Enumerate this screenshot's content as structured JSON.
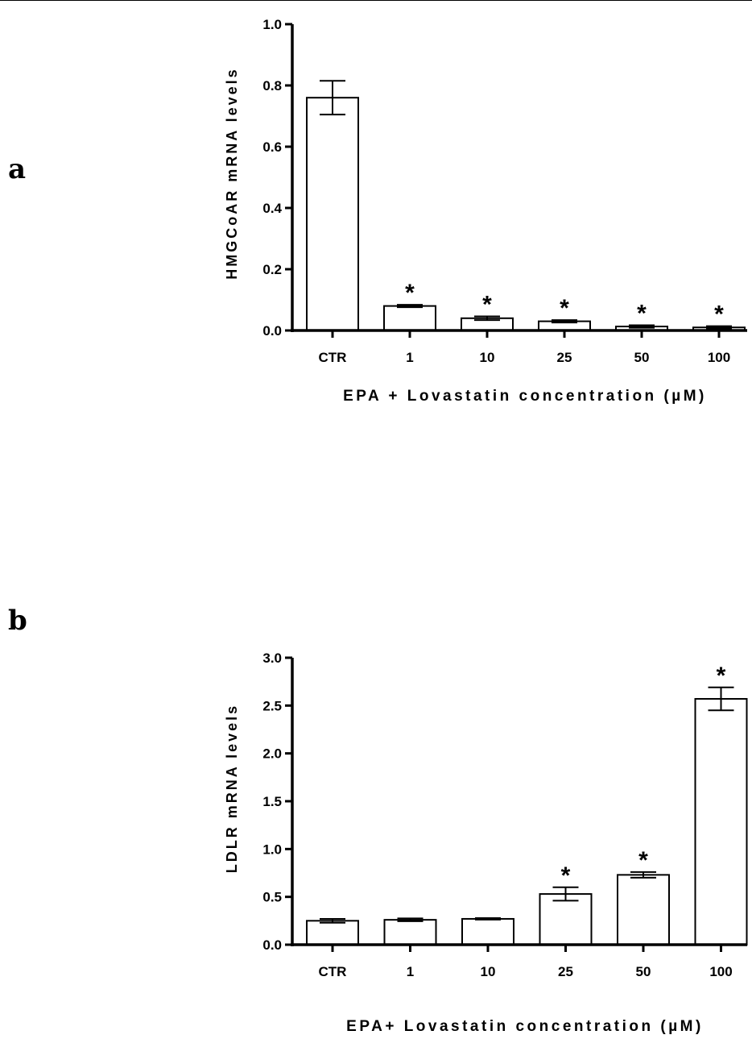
{
  "panels": [
    {
      "label": "a"
    },
    {
      "label": "b"
    }
  ],
  "chart_data": [
    {
      "type": "bar",
      "title": "",
      "xlabel": "EPA + Lovastatin concentration (µM)",
      "ylabel": "HMGCoAR mRNA levels",
      "categories": [
        "CTR",
        "1",
        "10",
        "25",
        "50",
        "100"
      ],
      "values": [
        0.76,
        0.08,
        0.04,
        0.03,
        0.013,
        0.01
      ],
      "errors": [
        0.055,
        0.004,
        0.006,
        0.004,
        0.004,
        0.004
      ],
      "significance": [
        "",
        "*",
        "*",
        "*",
        "*",
        "*"
      ],
      "ylim": [
        0,
        1.0
      ],
      "yticks": [
        0.0,
        0.2,
        0.4,
        0.6,
        0.8,
        1.0
      ],
      "ytick_labels": [
        "0.0",
        "0.2",
        "0.4",
        "0.6",
        "0.8",
        "1.0"
      ],
      "grid": false,
      "colors": {
        "bar_fill": "#ffffff",
        "bar_stroke": "#000000"
      }
    },
    {
      "type": "bar",
      "title": "",
      "xlabel": "EPA+ Lovastatin concentration (µM)",
      "ylabel": "LDLR mRNA levels",
      "categories": [
        "CTR",
        "1",
        "10",
        "25",
        "50",
        "100"
      ],
      "values": [
        0.25,
        0.26,
        0.27,
        0.53,
        0.73,
        2.57
      ],
      "errors": [
        0.02,
        0.015,
        0.008,
        0.07,
        0.03,
        0.12
      ],
      "significance": [
        "",
        "",
        "",
        "*",
        "*",
        "*"
      ],
      "ylim": [
        0,
        3.0
      ],
      "yticks": [
        0.0,
        0.5,
        1.0,
        1.5,
        2.0,
        2.5,
        3.0
      ],
      "ytick_labels": [
        "0.0",
        "0.5",
        "1.0",
        "1.5",
        "2.0",
        "2.5",
        "3.0"
      ],
      "grid": false,
      "colors": {
        "bar_fill": "#ffffff",
        "bar_stroke": "#000000"
      }
    }
  ]
}
